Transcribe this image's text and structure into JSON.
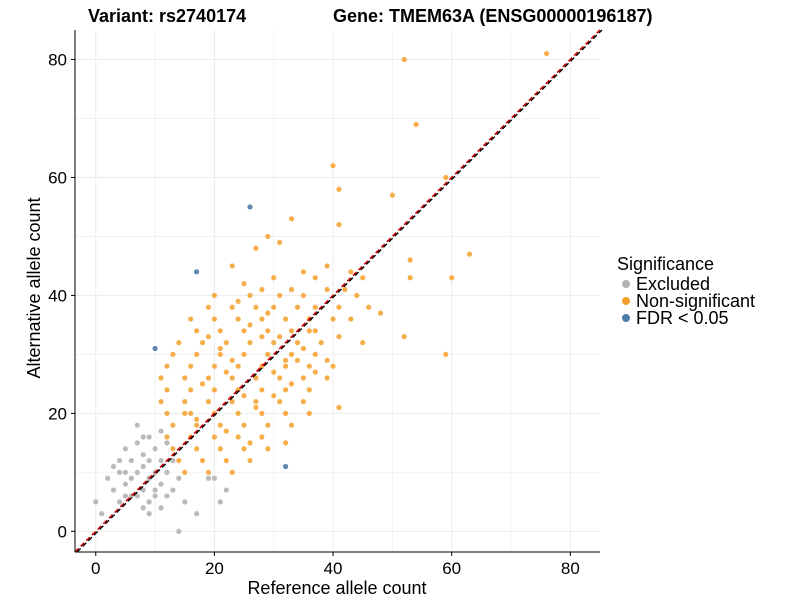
{
  "header": {
    "variant_title": "Variant: rs2740174",
    "gene_title": "Gene: TMEM63A (ENSG00000196187)"
  },
  "colors": {
    "excluded": "#b3b3b3",
    "non_significant": "#f5a02a",
    "fdr": "#4f79a6",
    "diagonal_red": "#cc0000",
    "diagonal_black": "#000000",
    "grid": "#ebebeb"
  },
  "chart_data": {
    "type": "scatter",
    "title": "",
    "xlabel": "Reference allele count",
    "ylabel": "Alternative allele count",
    "xlim": [
      -3.5,
      85
    ],
    "ylim": [
      -3.5,
      85
    ],
    "xticks": [
      0,
      20,
      40,
      60,
      80
    ],
    "yticks": [
      0,
      20,
      40,
      60,
      80
    ],
    "grid": true,
    "legend": {
      "title": "Significance",
      "position": "right",
      "entries": [
        "Excluded",
        "Non-significant",
        "FDR < 0.05"
      ]
    },
    "reference_lines": [
      {
        "color": "red",
        "style": "dashed",
        "from": [
          -3.5,
          -3.5
        ],
        "to": [
          85,
          85
        ]
      },
      {
        "color": "black",
        "style": "dashed",
        "from": [
          -3.5,
          -3.5
        ],
        "to": [
          85,
          85
        ]
      }
    ],
    "series": [
      {
        "name": "Excluded",
        "points": [
          [
            0,
            5
          ],
          [
            1,
            3
          ],
          [
            2,
            9
          ],
          [
            3,
            7
          ],
          [
            3,
            11
          ],
          [
            4,
            5
          ],
          [
            4,
            12
          ],
          [
            5,
            8
          ],
          [
            5,
            10
          ],
          [
            5,
            14
          ],
          [
            6,
            6
          ],
          [
            6,
            12
          ],
          [
            7,
            10
          ],
          [
            7,
            15
          ],
          [
            7,
            18
          ],
          [
            8,
            4
          ],
          [
            8,
            7
          ],
          [
            8,
            11
          ],
          [
            8,
            13
          ],
          [
            9,
            5
          ],
          [
            9,
            9
          ],
          [
            9,
            12
          ],
          [
            9,
            16
          ],
          [
            10,
            6
          ],
          [
            10,
            7
          ],
          [
            10,
            10
          ],
          [
            11,
            4
          ],
          [
            11,
            8
          ],
          [
            11,
            12
          ],
          [
            12,
            6
          ],
          [
            12,
            10
          ],
          [
            13,
            7
          ],
          [
            14,
            0
          ],
          [
            14,
            9
          ],
          [
            15,
            5
          ],
          [
            17,
            3
          ],
          [
            19,
            9
          ],
          [
            20,
            9
          ],
          [
            21,
            5
          ],
          [
            22,
            7
          ],
          [
            4,
            10
          ],
          [
            6,
            9
          ],
          [
            8,
            16
          ],
          [
            10,
            14
          ],
          [
            12,
            15
          ],
          [
            13,
            12
          ],
          [
            5,
            6
          ],
          [
            7,
            6
          ],
          [
            11,
            17
          ],
          [
            9,
            3
          ]
        ]
      },
      {
        "name": "Non-significant",
        "points": [
          [
            76,
            81
          ],
          [
            52,
            80
          ],
          [
            54,
            69
          ],
          [
            40,
            62
          ],
          [
            59,
            60
          ],
          [
            41,
            58
          ],
          [
            50,
            57
          ],
          [
            33,
            53
          ],
          [
            41,
            52
          ],
          [
            29,
            50
          ],
          [
            31,
            49
          ],
          [
            27,
            48
          ],
          [
            63,
            47
          ],
          [
            53,
            46
          ],
          [
            23,
            45
          ],
          [
            39,
            45
          ],
          [
            53,
            43
          ],
          [
            60,
            43
          ],
          [
            43,
            44
          ],
          [
            35,
            44
          ],
          [
            37,
            43
          ],
          [
            45,
            43
          ],
          [
            30,
            43
          ],
          [
            25,
            42
          ],
          [
            28,
            41
          ],
          [
            33,
            41
          ],
          [
            20,
            40
          ],
          [
            26,
            40
          ],
          [
            31,
            40
          ],
          [
            35,
            40
          ],
          [
            39,
            41
          ],
          [
            42,
            41
          ],
          [
            44,
            40
          ],
          [
            46,
            38
          ],
          [
            48,
            37
          ],
          [
            19,
            38
          ],
          [
            23,
            38
          ],
          [
            27,
            38
          ],
          [
            30,
            38
          ],
          [
            34,
            38
          ],
          [
            37,
            38
          ],
          [
            41,
            38
          ],
          [
            16,
            36
          ],
          [
            20,
            36
          ],
          [
            24,
            36
          ],
          [
            28,
            36
          ],
          [
            32,
            36
          ],
          [
            36,
            36
          ],
          [
            40,
            36
          ],
          [
            43,
            36
          ],
          [
            17,
            34
          ],
          [
            21,
            34
          ],
          [
            25,
            34
          ],
          [
            29,
            34
          ],
          [
            33,
            34
          ],
          [
            37,
            34
          ],
          [
            41,
            33
          ],
          [
            52,
            33
          ],
          [
            14,
            32
          ],
          [
            18,
            32
          ],
          [
            22,
            32
          ],
          [
            26,
            32
          ],
          [
            30,
            32
          ],
          [
            34,
            32
          ],
          [
            38,
            32
          ],
          [
            45,
            32
          ],
          [
            13,
            30
          ],
          [
            17,
            30
          ],
          [
            21,
            30
          ],
          [
            25,
            30
          ],
          [
            29,
            30
          ],
          [
            33,
            30
          ],
          [
            37,
            30
          ],
          [
            59,
            30
          ],
          [
            12,
            28
          ],
          [
            16,
            28
          ],
          [
            20,
            28
          ],
          [
            24,
            28
          ],
          [
            28,
            28
          ],
          [
            32,
            28
          ],
          [
            36,
            28
          ],
          [
            40,
            28
          ],
          [
            11,
            26
          ],
          [
            15,
            26
          ],
          [
            19,
            26
          ],
          [
            23,
            26
          ],
          [
            27,
            26
          ],
          [
            31,
            26
          ],
          [
            35,
            26
          ],
          [
            39,
            26
          ],
          [
            12,
            24
          ],
          [
            16,
            24
          ],
          [
            20,
            24
          ],
          [
            24,
            24
          ],
          [
            28,
            24
          ],
          [
            32,
            24
          ],
          [
            36,
            24
          ],
          [
            11,
            22
          ],
          [
            15,
            22
          ],
          [
            19,
            22
          ],
          [
            23,
            22
          ],
          [
            27,
            22
          ],
          [
            31,
            22
          ],
          [
            35,
            22
          ],
          [
            41,
            21
          ],
          [
            12,
            20
          ],
          [
            16,
            20
          ],
          [
            20,
            20
          ],
          [
            24,
            20
          ],
          [
            28,
            20
          ],
          [
            32,
            20
          ],
          [
            36,
            20
          ],
          [
            13,
            18
          ],
          [
            17,
            18
          ],
          [
            21,
            18
          ],
          [
            25,
            18
          ],
          [
            29,
            18
          ],
          [
            33,
            18
          ],
          [
            12,
            16
          ],
          [
            16,
            16
          ],
          [
            20,
            16
          ],
          [
            24,
            16
          ],
          [
            28,
            16
          ],
          [
            32,
            15
          ],
          [
            13,
            14
          ],
          [
            17,
            14
          ],
          [
            21,
            14
          ],
          [
            25,
            14
          ],
          [
            29,
            14
          ],
          [
            14,
            12
          ],
          [
            18,
            12
          ],
          [
            22,
            12
          ],
          [
            26,
            12
          ],
          [
            15,
            10
          ],
          [
            19,
            10
          ],
          [
            23,
            10
          ],
          [
            17,
            19
          ],
          [
            22,
            27
          ],
          [
            26,
            35
          ],
          [
            30,
            27
          ],
          [
            34,
            29
          ],
          [
            18,
            25
          ],
          [
            21,
            31
          ],
          [
            25,
            23
          ],
          [
            29,
            37
          ],
          [
            33,
            25
          ],
          [
            37,
            27
          ],
          [
            15,
            20
          ],
          [
            19,
            33
          ],
          [
            23,
            29
          ],
          [
            27,
            21
          ],
          [
            31,
            33
          ],
          [
            35,
            31
          ],
          [
            39,
            29
          ],
          [
            22,
            17
          ],
          [
            26,
            15
          ],
          [
            30,
            23
          ],
          [
            24,
            39
          ],
          [
            28,
            33
          ],
          [
            32,
            29
          ],
          [
            36,
            34
          ]
        ]
      },
      {
        "name": "FDR < 0.05",
        "points": [
          [
            26,
            55
          ],
          [
            17,
            44
          ],
          [
            10,
            31
          ],
          [
            32,
            11
          ]
        ]
      }
    ]
  }
}
